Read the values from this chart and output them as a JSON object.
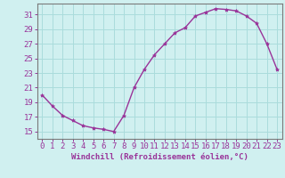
{
  "x": [
    0,
    1,
    2,
    3,
    4,
    5,
    6,
    7,
    8,
    9,
    10,
    11,
    12,
    13,
    14,
    15,
    16,
    17,
    18,
    19,
    20,
    21,
    22,
    23
  ],
  "y": [
    20.0,
    18.5,
    17.2,
    16.5,
    15.8,
    15.5,
    15.3,
    15.0,
    17.2,
    21.0,
    23.5,
    25.5,
    27.0,
    28.5,
    29.2,
    30.8,
    31.3,
    31.8,
    31.7,
    31.5,
    30.8,
    29.8,
    27.0,
    23.5
  ],
  "line_color": "#993399",
  "marker": "*",
  "marker_size": 3,
  "bg_color": "#d0f0f0",
  "grid_color": "#aadcdc",
  "tick_color": "#993399",
  "label_color": "#993399",
  "xlabel": "Windchill (Refroidissement éolien,°C)",
  "ylim": [
    14.0,
    32.5
  ],
  "yticks": [
    15,
    17,
    19,
    21,
    23,
    25,
    27,
    29,
    31
  ],
  "xticks": [
    0,
    1,
    2,
    3,
    4,
    5,
    6,
    7,
    8,
    9,
    10,
    11,
    12,
    13,
    14,
    15,
    16,
    17,
    18,
    19,
    20,
    21,
    22,
    23
  ],
  "xlabel_fontsize": 6.5,
  "tick_fontsize": 6.5,
  "spine_color": "#7a7a7a",
  "linewidth": 1.0
}
